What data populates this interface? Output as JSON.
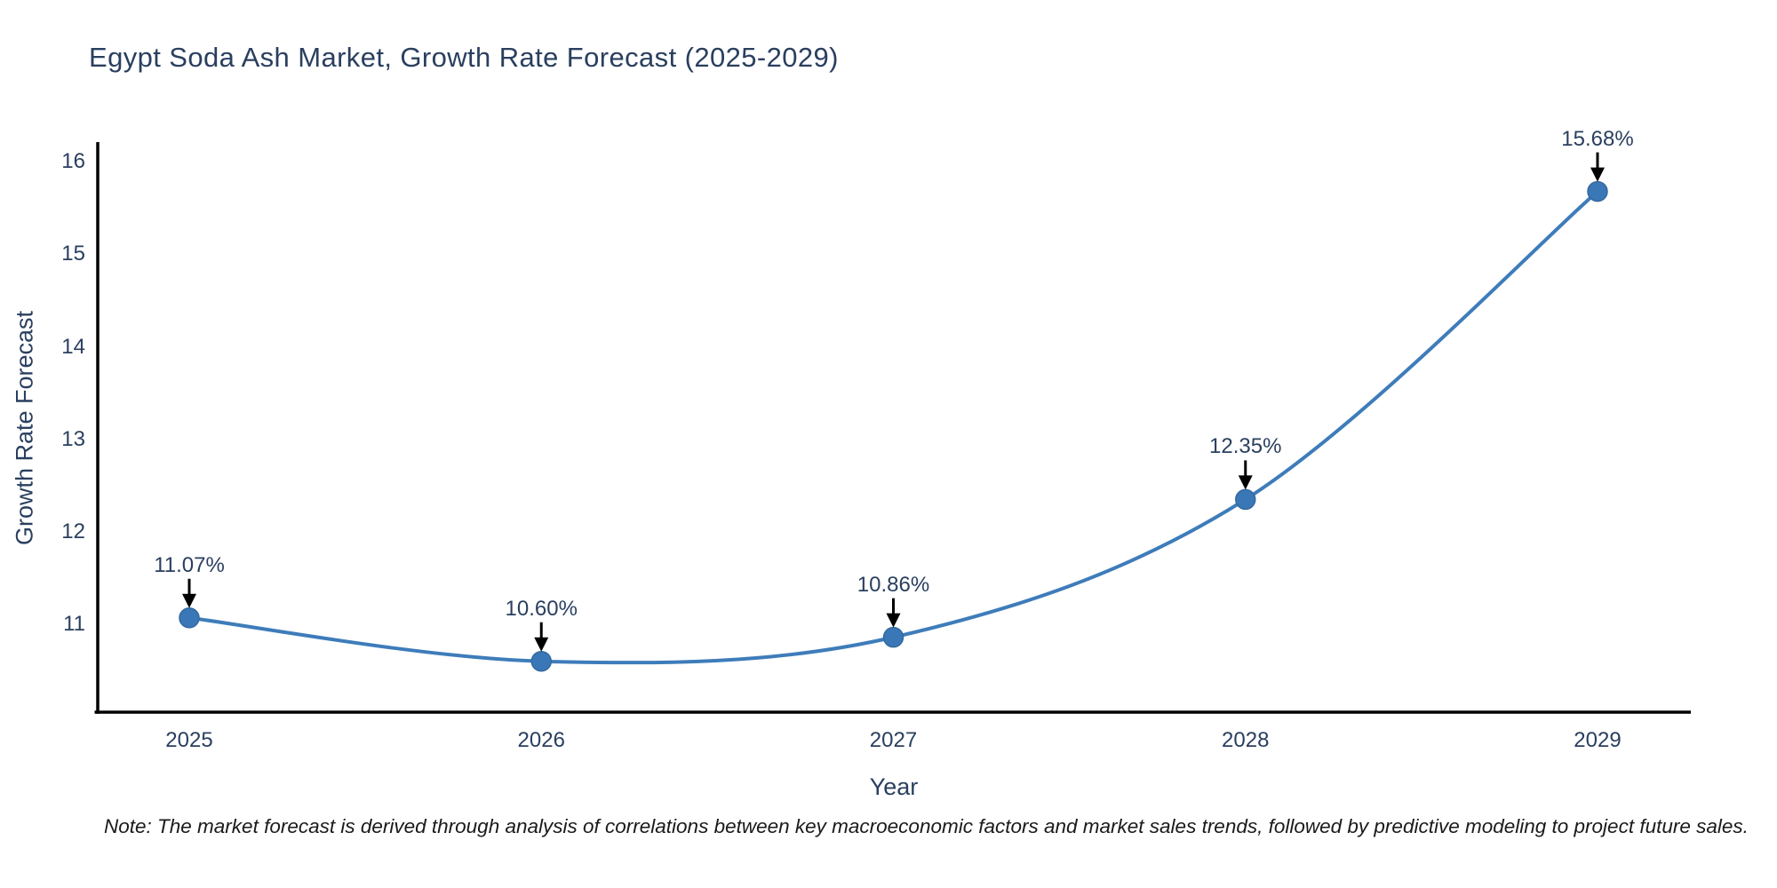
{
  "title": "Egypt Soda Ash Market, Growth Rate Forecast (2025-2029)",
  "note": "Note: The market forecast is derived through analysis of correlations between key macroeconomic factors and market sales trends, followed by predictive modeling to project future sales.",
  "chart_data": {
    "type": "line",
    "title": "Egypt Soda Ash Market, Growth Rate Forecast (2025-2029)",
    "xlabel": "Year",
    "ylabel": "Growth Rate Forecast",
    "categories": [
      "2025",
      "2026",
      "2027",
      "2028",
      "2029"
    ],
    "series": [
      {
        "name": "Growth Rate Forecast",
        "values": [
          11.07,
          10.6,
          10.86,
          12.35,
          15.68
        ],
        "point_labels": [
          "11.07%",
          "10.60%",
          "10.86%",
          "12.35%",
          "15.68%"
        ]
      }
    ],
    "yticks": [
      11,
      12,
      13,
      14,
      15,
      16
    ],
    "ylim": [
      10.05,
      16.21
    ],
    "line_shape": "spline",
    "grid": false,
    "legend": "none",
    "annotations_have_arrows": true,
    "colors": {
      "line": "#3e7cba",
      "marker_fill": "#3a77b7",
      "marker_edge": "#35699f",
      "axis_line": "#000000",
      "tick_text": "#2a3f5f",
      "title_text": "#2a3f5f",
      "annotation_text": "#2a3f5f",
      "arrow": "#000000",
      "note_text": "#1a1a1a",
      "background": "#ffffff"
    }
  }
}
